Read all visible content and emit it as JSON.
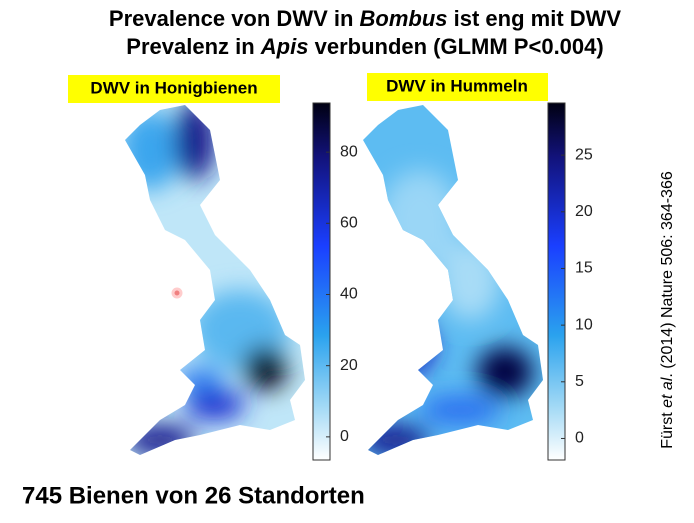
{
  "title": {
    "line1": [
      "Prevalence von DWV in ",
      "Bombus",
      " ist eng mit DWV"
    ],
    "line2": [
      "Prevalenz in ",
      "Apis",
      " verbunden (GLMM P<0.004)"
    ]
  },
  "maps": [
    {
      "label": "DWV in Honigbienen",
      "colorbar": {
        "lim": [
          -6.5,
          93.8
        ],
        "ticks": [
          0,
          20,
          40,
          60,
          80
        ]
      }
    },
    {
      "label": "DWV in Hummeln",
      "colorbar": {
        "lim": [
          -1.9,
          29.6
        ],
        "ticks": [
          0,
          5,
          10,
          15,
          20,
          25
        ]
      }
    }
  ],
  "citation": [
    "Fürst ",
    "et al",
    ". (2014) Nature 506: 364-366"
  ],
  "footer": "745 Bienen von 26 Standorten"
}
